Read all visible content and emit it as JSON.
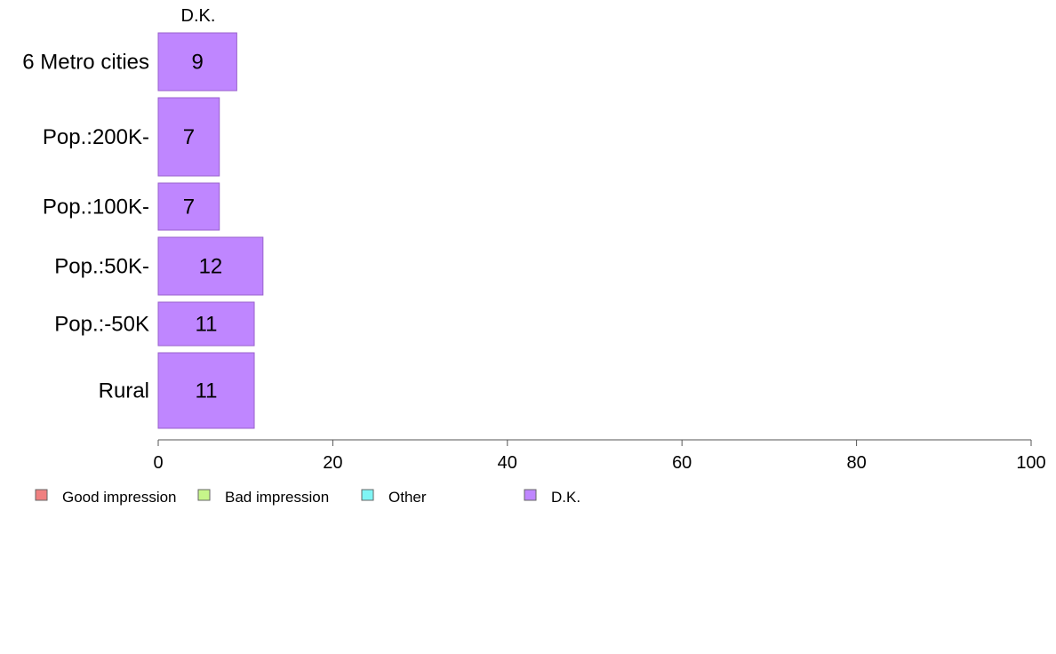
{
  "chart_data": {
    "type": "bar",
    "orientation": "horizontal",
    "stacked": true,
    "categories": [
      "6 Metro cities",
      "Pop.:200K-",
      "Pop.:100K-",
      "Pop.:50K-",
      "Pop.:-50K",
      "Rural"
    ],
    "series": [
      {
        "name": "D.K.",
        "color": "#bf86ff",
        "values": [
          9,
          7,
          7,
          12,
          11,
          11
        ]
      }
    ],
    "column_label": "D.K.",
    "xlim": [
      0,
      100
    ],
    "x_ticks": [
      0,
      20,
      40,
      60,
      80,
      100
    ],
    "legend": {
      "position": "bottom-left",
      "items": [
        {
          "label": "Good impression",
          "color": "#f08080"
        },
        {
          "label": "Bad impression",
          "color": "#c6f58a"
        },
        {
          "label": "Other",
          "color": "#7ff5f5"
        },
        {
          "label": "D.K.",
          "color": "#bf86ff"
        }
      ]
    },
    "grid": false
  }
}
